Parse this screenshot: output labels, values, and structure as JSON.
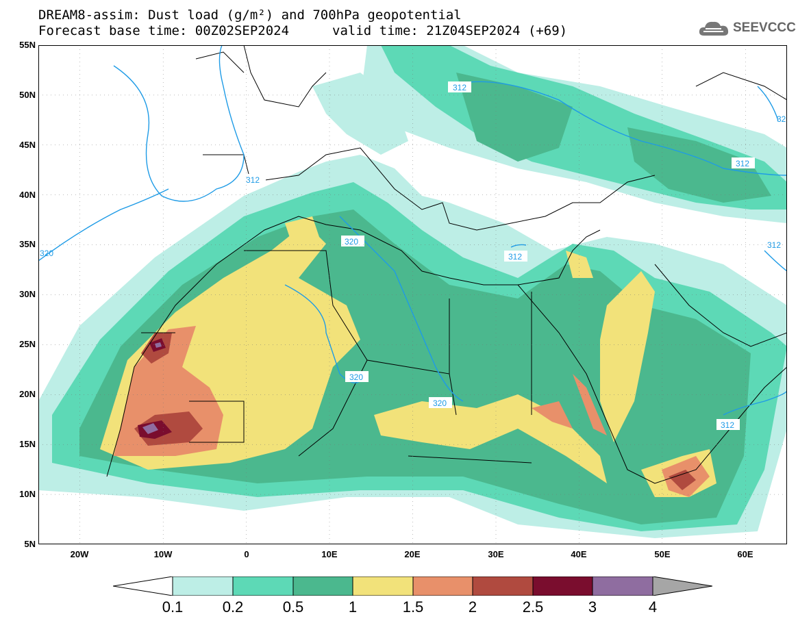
{
  "title": {
    "line1": "DREAM8-assim: Dust load (g/m²) and 700hPa geopotential",
    "line2_left": "Forecast base time: 00Z02SEP2024",
    "line2_right": "valid time: 21Z04SEP2024 (+69)"
  },
  "logo": {
    "text": "SEEVCCC",
    "icon": "cloud-icon"
  },
  "map": {
    "lat_labels": [
      "55N",
      "50N",
      "45N",
      "40N",
      "35N",
      "30N",
      "25N",
      "20N",
      "15N",
      "10N",
      "5N"
    ],
    "lon_labels": [
      "20W",
      "10W",
      "0",
      "10E",
      "20E",
      "30E",
      "40E",
      "50E",
      "60E"
    ],
    "lat_range": [
      5,
      55
    ],
    "lon_range": [
      -25,
      65
    ],
    "contour_labels": [
      "312",
      "312",
      "312",
      "312",
      "312",
      "320",
      "320",
      "320",
      "320",
      "320",
      "312"
    ],
    "contour_color": "#1e9be6"
  },
  "colorbar": {
    "labels": [
      "0.1",
      "0.2",
      "0.5",
      "1",
      "1.5",
      "2",
      "2.5",
      "3",
      "4"
    ],
    "colors": [
      "#ffffff",
      "#bdeee6",
      "#5dd9b6",
      "#4bb88e",
      "#f2e27a",
      "#e8906a",
      "#b04a3f",
      "#7a0d2e",
      "#8f6da0",
      "#a6a6a6"
    ]
  }
}
